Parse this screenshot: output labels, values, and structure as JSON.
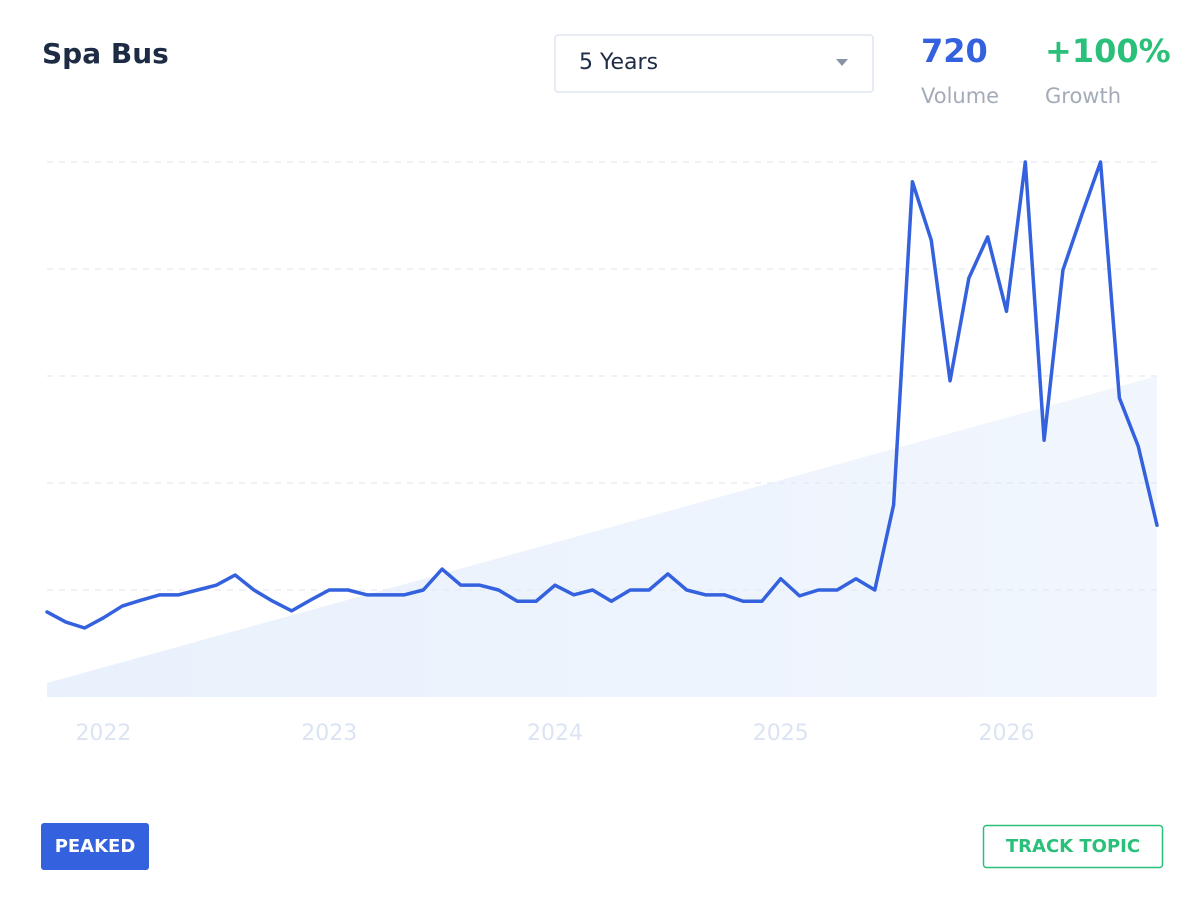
{
  "header": {
    "title": "Spa Bus",
    "timeframe": "5 Years",
    "stats": [
      {
        "value": "720",
        "label": "Volume"
      },
      {
        "value": "+100%",
        "label": "Growth"
      }
    ]
  },
  "chart_data": {
    "type": "line",
    "categories": [
      null,
      null,
      null,
      "2022",
      null,
      null,
      null,
      null,
      null,
      null,
      null,
      null,
      null,
      null,
      null,
      "2023",
      null,
      null,
      null,
      null,
      null,
      null,
      null,
      null,
      null,
      null,
      null,
      "2024",
      null,
      null,
      null,
      null,
      null,
      null,
      null,
      null,
      null,
      null,
      null,
      "2025",
      null,
      null,
      null,
      null,
      null,
      null,
      null,
      null,
      null,
      null,
      null,
      "2026",
      null,
      null,
      null,
      null,
      null,
      null,
      null,
      null
    ],
    "series": [
      {
        "color": "#3461dd",
        "values": [
          15.9,
          14.0,
          12.9,
          14.8,
          17.0,
          18.1,
          19.1,
          19.1,
          20.0,
          20.9,
          22.8,
          20.0,
          17.9,
          16.1,
          18.1,
          20.0,
          20.0,
          19.1,
          19.1,
          19.1,
          20.0,
          23.9,
          20.9,
          20.9,
          20.0,
          17.9,
          17.9,
          20.9,
          19.1,
          20.0,
          17.9,
          20.0,
          20.0,
          23.0,
          20.0,
          19.1,
          19.1,
          17.9,
          17.9,
          22.1,
          18.9,
          20.0,
          20.0,
          22.1,
          20.0,
          35.9,
          96.3,
          85.4,
          59.1,
          78.3,
          86.0,
          72.1,
          100,
          48.0,
          79.8,
          90.1,
          100,
          55.9,
          46.9,
          32.1
        ]
      }
    ],
    "ylim": [
      0,
      100
    ],
    "yticks": [
      20,
      40,
      60,
      80,
      100
    ],
    "grid": true
  },
  "footer": {
    "status": "PEAKED",
    "action": "TRACK TOPIC"
  }
}
